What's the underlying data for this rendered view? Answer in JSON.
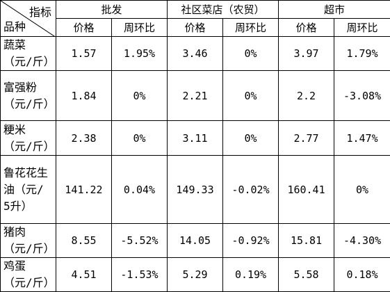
{
  "header": {
    "corner_top": "指标",
    "corner_bottom": "品种",
    "groups": [
      "批发",
      "社区菜店（农贸）",
      "超市"
    ],
    "subheaders": [
      "价格",
      "周环比",
      "价格",
      "周环比",
      "价格",
      "周环比"
    ]
  },
  "table": {
    "rows": [
      [
        "蔬菜（元/斤）",
        "1.57",
        "1.95%",
        "3.46",
        "0%",
        "3.97",
        "1.79%"
      ],
      [
        "富强粉（元/斤）",
        "1.84",
        "0%",
        "2.21",
        "0%",
        "2.2",
        "-3.08%"
      ],
      [
        "粳米（元/斤）",
        "2.38",
        "0%",
        "3.11",
        "0%",
        "2.77",
        "1.47%"
      ],
      [
        "鲁花花生油（元/5升）",
        "141.22",
        "0.04%",
        "149.33",
        "-0.02%",
        "160.41",
        "0%"
      ],
      [
        "猪肉（元/斤）",
        "8.55",
        "-5.52%",
        "14.05",
        "-0.92%",
        "15.81",
        "-4.30%"
      ],
      [
        "鸡蛋（元/斤）",
        "4.51",
        "-1.53%",
        "5.29",
        "0.19%",
        "5.58",
        "0.18%"
      ]
    ]
  }
}
